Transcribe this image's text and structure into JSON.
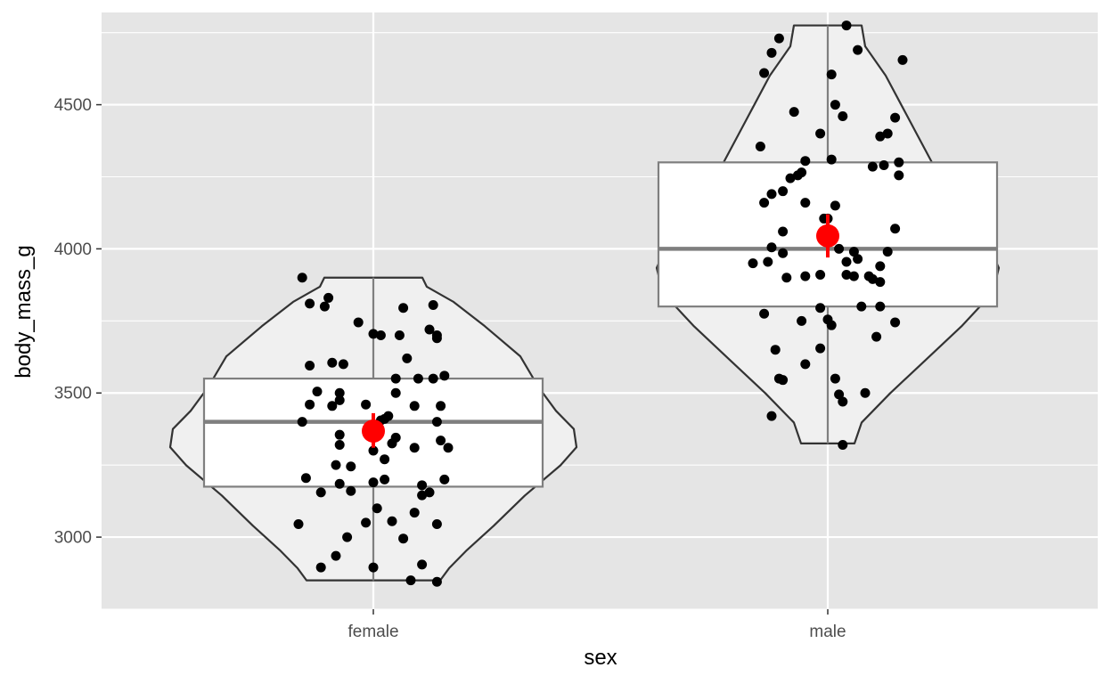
{
  "chart_data": {
    "type": "violin",
    "xlabel": "sex",
    "ylabel": "body_mass_g",
    "categories": [
      "female",
      "male"
    ],
    "ylim": [
      2750,
      4820
    ],
    "y_ticks": [
      3000,
      3500,
      4000,
      4500
    ],
    "grid": true,
    "legend": "none",
    "colors": {
      "panel": "#e5e5e5",
      "grid": "#ffffff",
      "violin_fill": "#f0f0f0",
      "box_fill": "#ffffff",
      "points": "#000000",
      "mean": "#ff0000"
    },
    "groups": [
      {
        "category": "female",
        "range": [
          2850,
          3900
        ],
        "box": {
          "q1": 3175,
          "median": 3400,
          "q3": 3550
        },
        "mean": 3368,
        "mean_ci": [
          3310,
          3430
        ],
        "points": [
          [
            -0.19,
            3900
          ],
          [
            -0.17,
            3810
          ],
          [
            -0.12,
            3830
          ],
          [
            -0.13,
            3800
          ],
          [
            -0.04,
            3745
          ],
          [
            0.0,
            3705
          ],
          [
            0.02,
            3700
          ],
          [
            0.07,
            3700
          ],
          [
            0.08,
            3795
          ],
          [
            0.15,
            3720
          ],
          [
            0.17,
            3700
          ],
          [
            0.17,
            3690
          ],
          [
            0.16,
            3805
          ],
          [
            -0.17,
            3595
          ],
          [
            -0.11,
            3605
          ],
          [
            -0.08,
            3600
          ],
          [
            -0.15,
            3505
          ],
          [
            -0.09,
            3500
          ],
          [
            -0.09,
            3475
          ],
          [
            -0.11,
            3455
          ],
          [
            -0.17,
            3460
          ],
          [
            -0.19,
            3400
          ],
          [
            -0.02,
            3460
          ],
          [
            0.02,
            3405
          ],
          [
            0.04,
            3420
          ],
          [
            0.03,
            3410
          ],
          [
            0.06,
            3500
          ],
          [
            0.06,
            3550
          ],
          [
            0.09,
            3620
          ],
          [
            0.12,
            3550
          ],
          [
            0.16,
            3550
          ],
          [
            0.19,
            3560
          ],
          [
            0.11,
            3455
          ],
          [
            0.18,
            3455
          ],
          [
            0.17,
            3400
          ],
          [
            0.18,
            3335
          ],
          [
            0.2,
            3310
          ],
          [
            0.06,
            3345
          ],
          [
            0.05,
            3325
          ],
          [
            0.11,
            3310
          ],
          [
            -0.09,
            3355
          ],
          [
            -0.09,
            3320
          ],
          [
            0.0,
            3300
          ],
          [
            0.03,
            3270
          ],
          [
            -0.1,
            3250
          ],
          [
            -0.06,
            3245
          ],
          [
            -0.18,
            3205
          ],
          [
            -0.14,
            3155
          ],
          [
            -0.09,
            3185
          ],
          [
            -0.06,
            3160
          ],
          [
            0.0,
            3190
          ],
          [
            0.03,
            3200
          ],
          [
            0.13,
            3180
          ],
          [
            0.15,
            3155
          ],
          [
            0.13,
            3145
          ],
          [
            0.19,
            3200
          ],
          [
            0.01,
            3100
          ],
          [
            0.11,
            3085
          ],
          [
            0.05,
            3055
          ],
          [
            -0.02,
            3050
          ],
          [
            -0.2,
            3045
          ],
          [
            0.17,
            3045
          ],
          [
            -0.07,
            3000
          ],
          [
            0.08,
            2995
          ],
          [
            -0.1,
            2935
          ],
          [
            -0.14,
            2895
          ],
          [
            0.0,
            2895
          ],
          [
            0.13,
            2905
          ],
          [
            0.1,
            2850
          ],
          [
            0.17,
            2845
          ]
        ]
      },
      {
        "category": "male",
        "range": [
          3325,
          4775
        ],
        "box": {
          "q1": 3800,
          "median": 4000,
          "q3": 4300
        },
        "mean": 4045,
        "mean_ci": [
          3970,
          4120
        ],
        "points": [
          [
            0.05,
            4775
          ],
          [
            0.08,
            4690
          ],
          [
            -0.13,
            4730
          ],
          [
            -0.15,
            4680
          ],
          [
            -0.17,
            4610
          ],
          [
            0.01,
            4605
          ],
          [
            0.2,
            4655
          ],
          [
            0.02,
            4500
          ],
          [
            0.04,
            4460
          ],
          [
            -0.09,
            4475
          ],
          [
            -0.18,
            4355
          ],
          [
            -0.02,
            4400
          ],
          [
            0.14,
            4390
          ],
          [
            0.16,
            4400
          ],
          [
            0.18,
            4455
          ],
          [
            0.19,
            4300
          ],
          [
            0.19,
            4255
          ],
          [
            0.15,
            4290
          ],
          [
            0.12,
            4285
          ],
          [
            0.01,
            4310
          ],
          [
            -0.06,
            4305
          ],
          [
            -0.07,
            4265
          ],
          [
            -0.08,
            4255
          ],
          [
            -0.1,
            4245
          ],
          [
            -0.12,
            4200
          ],
          [
            -0.15,
            4190
          ],
          [
            -0.17,
            4160
          ],
          [
            -0.06,
            4160
          ],
          [
            0.0,
            4105
          ],
          [
            0.02,
            4150
          ],
          [
            -0.01,
            4105
          ],
          [
            0.18,
            4070
          ],
          [
            -0.12,
            4060
          ],
          [
            -0.15,
            4005
          ],
          [
            -0.12,
            3985
          ],
          [
            0.03,
            4000
          ],
          [
            0.07,
            3990
          ],
          [
            0.08,
            3965
          ],
          [
            0.05,
            3955
          ],
          [
            -0.2,
            3950
          ],
          [
            -0.16,
            3955
          ],
          [
            -0.11,
            3900
          ],
          [
            -0.06,
            3905
          ],
          [
            -0.02,
            3910
          ],
          [
            0.05,
            3910
          ],
          [
            0.07,
            3905
          ],
          [
            0.11,
            3905
          ],
          [
            0.12,
            3895
          ],
          [
            0.14,
            3885
          ],
          [
            0.14,
            3940
          ],
          [
            0.16,
            3990
          ],
          [
            -0.17,
            3775
          ],
          [
            -0.07,
            3750
          ],
          [
            -0.02,
            3795
          ],
          [
            0.0,
            3755
          ],
          [
            0.01,
            3735
          ],
          [
            0.09,
            3800
          ],
          [
            0.14,
            3800
          ],
          [
            0.18,
            3745
          ],
          [
            0.13,
            3695
          ],
          [
            -0.14,
            3650
          ],
          [
            -0.02,
            3655
          ],
          [
            -0.13,
            3550
          ],
          [
            -0.12,
            3545
          ],
          [
            -0.06,
            3600
          ],
          [
            0.02,
            3550
          ],
          [
            0.03,
            3495
          ],
          [
            0.1,
            3500
          ],
          [
            0.04,
            3470
          ],
          [
            -0.15,
            3420
          ],
          [
            0.04,
            3320
          ]
        ]
      }
    ]
  }
}
